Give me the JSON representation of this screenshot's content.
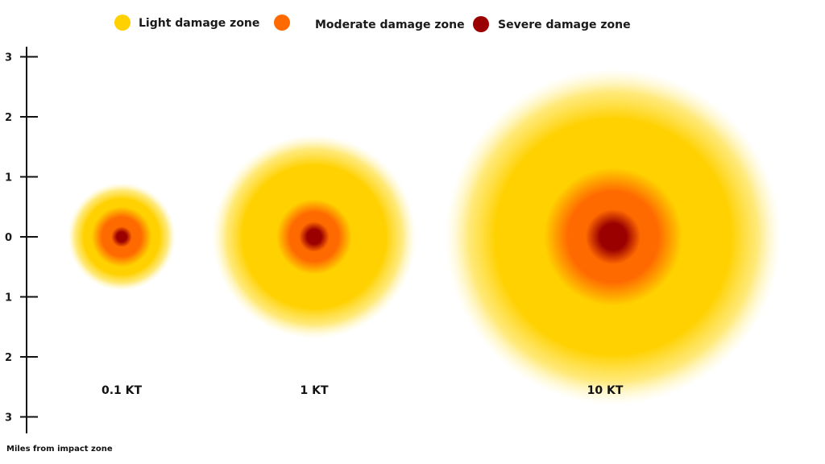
{
  "legend": [
    {
      "label": "Light damage zone",
      "color": "#ffd100"
    },
    {
      "label": "Moderate damage zone",
      "color": "#ff6a00"
    },
    {
      "label": "Severe damage zone",
      "color": "#9b0000"
    }
  ],
  "axis": {
    "caption": "Miles from impact zone",
    "ticks": [
      {
        "label": "3",
        "value": 3
      },
      {
        "label": "2",
        "value": 2
      },
      {
        "label": "1",
        "value": 1
      },
      {
        "label": "0",
        "value": 0
      },
      {
        "label": "1",
        "value": -1
      },
      {
        "label": "2",
        "value": -2
      },
      {
        "label": "3",
        "value": -3
      }
    ]
  },
  "blasts": [
    {
      "label": "0.1 KT",
      "light_radius_mi": 0.9,
      "moderate_radius_mi": 0.4,
      "severe_radius_mi": 0.15
    },
    {
      "label": "1 KT",
      "light_radius_mi": 1.7,
      "moderate_radius_mi": 0.5,
      "severe_radius_mi": 0.22
    },
    {
      "label": "10 KT",
      "light_radius_mi": 2.8,
      "moderate_radius_mi": 0.92,
      "severe_radius_mi": 0.4
    }
  ]
}
